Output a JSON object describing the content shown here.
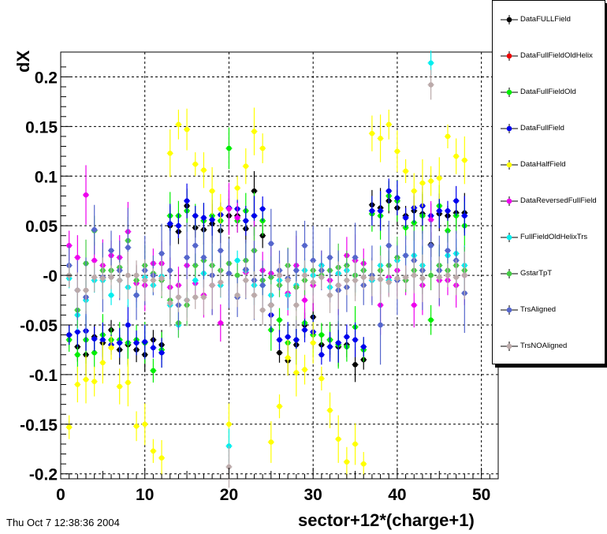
{
  "footer": {
    "timestamp": "Thu Oct  7 12:38:36 2004"
  },
  "chart_data": {
    "type": "scatter",
    "title": "",
    "xlabel": "sector+12*(charge+1)",
    "ylabel": "dX",
    "xlim": [
      0,
      52
    ],
    "ylim": [
      -0.205,
      0.225
    ],
    "xticks": [
      "0",
      "10",
      "20",
      "30",
      "40",
      "50"
    ],
    "yticks": [
      "-0.2",
      "-0.15",
      "-0.1",
      "-0.05",
      "-0",
      "0.05",
      "0.1",
      "0.15",
      "0.2"
    ],
    "grid": true,
    "legend_position": "right-outside",
    "x": [
      1,
      2,
      3,
      4,
      5,
      6,
      7,
      8,
      9,
      10,
      11,
      12,
      13,
      14,
      15,
      16,
      17,
      18,
      19,
      20,
      21,
      22,
      23,
      24,
      25,
      26,
      27,
      28,
      29,
      30,
      31,
      32,
      33,
      34,
      35,
      36,
      37,
      38,
      39,
      40,
      41,
      42,
      43,
      44,
      45,
      46,
      47,
      48
    ],
    "series": [
      {
        "name": "DataFULLField",
        "color": "#000000",
        "err": 0.01,
        "values": [
          -0.06,
          -0.072,
          -0.08,
          -0.062,
          -0.068,
          -0.055,
          -0.075,
          -0.07,
          -0.075,
          -0.08,
          -0.065,
          -0.07,
          0.05,
          0.044,
          0.07,
          0.048,
          0.046,
          0.052,
          0.045,
          0.06,
          0.06,
          0.047,
          0.085,
          0.04,
          -0.03,
          -0.078,
          -0.086,
          -0.07,
          -0.05,
          -0.042,
          -0.07,
          -0.065,
          -0.072,
          -0.07,
          -0.09,
          -0.085,
          0.071,
          0.068,
          0.075,
          0.068,
          0.06,
          0.065,
          0.062,
          0.031,
          0.062,
          0.06,
          0.063,
          0.063
        ]
      },
      {
        "name": "DataFullFieldOldHelix",
        "color": "#ee0000",
        "err": 0.01,
        "values": []
      },
      {
        "name": "DataFullFieldOld",
        "color": "#00ee00",
        "err": 0.012,
        "values": [
          -0.065,
          -0.08,
          -0.065,
          -0.078,
          -0.06,
          -0.065,
          -0.065,
          -0.068,
          -0.065,
          -0.068,
          -0.096,
          -0.075,
          0.06,
          0.06,
          0.065,
          0.06,
          0.055,
          0.06,
          0.055,
          0.128,
          0.055,
          0.065,
          0.06,
          0.055,
          -0.055,
          -0.045,
          -0.068,
          -0.065,
          -0.048,
          -0.06,
          -0.06,
          -0.065,
          -0.07,
          -0.072,
          -0.052,
          -0.075,
          0.062,
          0.06,
          0.08,
          0.075,
          0.048,
          0.053,
          0.06,
          -0.045,
          0.07,
          0.045,
          0.06,
          0.05
        ]
      },
      {
        "name": "DataFullField",
        "color": "#0000ee",
        "err": 0.01,
        "values": [
          -0.06,
          -0.057,
          -0.056,
          -0.064,
          -0.065,
          -0.07,
          -0.068,
          -0.05,
          -0.068,
          -0.067,
          -0.073,
          -0.078,
          0.052,
          0.05,
          0.075,
          0.06,
          0.058,
          0.056,
          0.061,
          0.068,
          0.067,
          0.055,
          0.06,
          0.067,
          -0.04,
          -0.065,
          -0.062,
          -0.065,
          -0.055,
          -0.057,
          -0.08,
          -0.072,
          -0.068,
          -0.062,
          -0.065,
          -0.072,
          0.065,
          0.065,
          0.085,
          0.078,
          0.058,
          0.068,
          0.07,
          0.06,
          0.065,
          0.065,
          0.075,
          0.06
        ]
      },
      {
        "name": "DataHalfField",
        "color": "#ffff00",
        "err": 0.012,
        "values": [
          -0.153,
          -0.11,
          -0.105,
          -0.107,
          -0.088,
          -0.073,
          -0.112,
          -0.108,
          -0.152,
          -0.15,
          -0.177,
          -0.184,
          0.123,
          0.152,
          0.147,
          0.112,
          0.106,
          0.085,
          0.067,
          -0.15,
          0.088,
          0.11,
          0.145,
          0.128,
          -0.168,
          -0.132,
          -0.083,
          -0.098,
          -0.095,
          -0.068,
          -0.104,
          -0.136,
          -0.165,
          -0.188,
          -0.17,
          -0.19,
          0.143,
          0.138,
          0.152,
          0.125,
          0.105,
          0.085,
          0.093,
          0.095,
          0.098,
          0.14,
          0.12,
          0.116
        ]
      },
      {
        "name": "DataReversedFullField",
        "color": "#ee00ee",
        "err": 0.015,
        "values": [
          0.03,
          0.018,
          0.081,
          0.015,
          0.01,
          0.02,
          0.018,
          0.044,
          -0.008,
          -0.01,
          0.012,
          0.012,
          -0.012,
          -0.01,
          0.01,
          -0.008,
          -0.02,
          -0.01,
          -0.048,
          0.067,
          0.058,
          0.003,
          0.025,
          0.005,
          0.002,
          0.0,
          -0.018,
          0.01,
          -0.025,
          -0.01,
          0.01,
          -0.005,
          -0.01,
          0.02,
          0.015,
          0.012,
          -0.005,
          -0.03,
          -0.002,
          0.005,
          -0.005,
          -0.03,
          -0.01,
          0.056,
          -0.005,
          -0.005,
          -0.01,
          0.0
        ]
      },
      {
        "name": "FullFieldOldHelixTrs",
        "color": "#00eeee",
        "err": 0.01,
        "values": [
          -0.003,
          -0.04,
          -0.025,
          -0.005,
          -0.005,
          -0.02,
          -0.005,
          -0.012,
          -0.02,
          -0.002,
          -0.01,
          -0.001,
          -0.03,
          -0.05,
          -0.025,
          -0.005,
          0.002,
          0.01,
          -0.01,
          -0.172,
          0.015,
          0.005,
          -0.01,
          -0.01,
          -0.02,
          -0.005,
          -0.02,
          -0.01,
          0.005,
          0.0,
          0.01,
          -0.012,
          0.002,
          0.005,
          0.0,
          0.005,
          -0.005,
          0.01,
          -0.005,
          0.015,
          0.02,
          0.02,
          0.01,
          0.214,
          0.01,
          0.02,
          0.022,
          0.01
        ]
      },
      {
        "name": "GstarTpT",
        "color": "#44cc44",
        "err": 0.012,
        "values": [
          0.0,
          -0.035,
          0.012,
          0.045,
          0.005,
          0.005,
          0.008,
          0.035,
          -0.005,
          0.01,
          0.002,
          -0.005,
          -0.025,
          -0.048,
          -0.03,
          0.01,
          0.015,
          0.01,
          0.005,
          0.012,
          0.0,
          0.015,
          0.025,
          -0.005,
          -0.002,
          -0.01,
          0.01,
          -0.012,
          -0.005,
          0.005,
          0.0,
          0.005,
          0.008,
          0.01,
          0.0,
          0.005,
          0.0,
          0.005,
          0.01,
          0.018,
          -0.005,
          0.005,
          0.005,
          0.0,
          0.01,
          0.005,
          0.01,
          0.005
        ]
      },
      {
        "name": "TrsAligned",
        "color": "#5566cc",
        "err": 0.02,
        "values": [
          0.01,
          -0.015,
          -0.022,
          0.046,
          -0.002,
          0.025,
          0.005,
          0.028,
          -0.02,
          0.005,
          0.0,
          0.022,
          0.005,
          -0.03,
          0.018,
          0.03,
          0.018,
          0.0,
          0.025,
          0.002,
          -0.022,
          0.006,
          -0.005,
          -0.01,
          0.032,
          0.005,
          -0.003,
          0.005,
          0.03,
          0.015,
          0.005,
          0.018,
          -0.015,
          -0.012,
          0.018,
          -0.01,
          0.0,
          -0.05,
          0.03,
          -0.005,
          0.02,
          0.015,
          0.005,
          0.03,
          0.005,
          0.025,
          0.015,
          -0.018
        ]
      },
      {
        "name": "TrsNOAligned",
        "color": "#bbaaaa",
        "err": 0.012,
        "values": [
          0.0,
          -0.015,
          -0.015,
          -0.002,
          -0.003,
          -0.002,
          -0.005,
          0.0,
          0.0,
          -0.005,
          -0.005,
          -0.003,
          -0.028,
          -0.022,
          -0.025,
          -0.022,
          -0.022,
          -0.01,
          -0.007,
          -0.193,
          -0.02,
          -0.005,
          -0.02,
          -0.035,
          -0.03,
          0.0,
          -0.005,
          -0.03,
          0.0,
          -0.007,
          -0.002,
          -0.02,
          -0.01,
          -0.005,
          -0.005,
          -0.002,
          -0.003,
          -0.004,
          -0.007,
          -0.003,
          -0.002,
          0.0,
          -0.003,
          0.192,
          -0.002,
          0.0,
          -0.002,
          0.0
        ]
      }
    ]
  }
}
